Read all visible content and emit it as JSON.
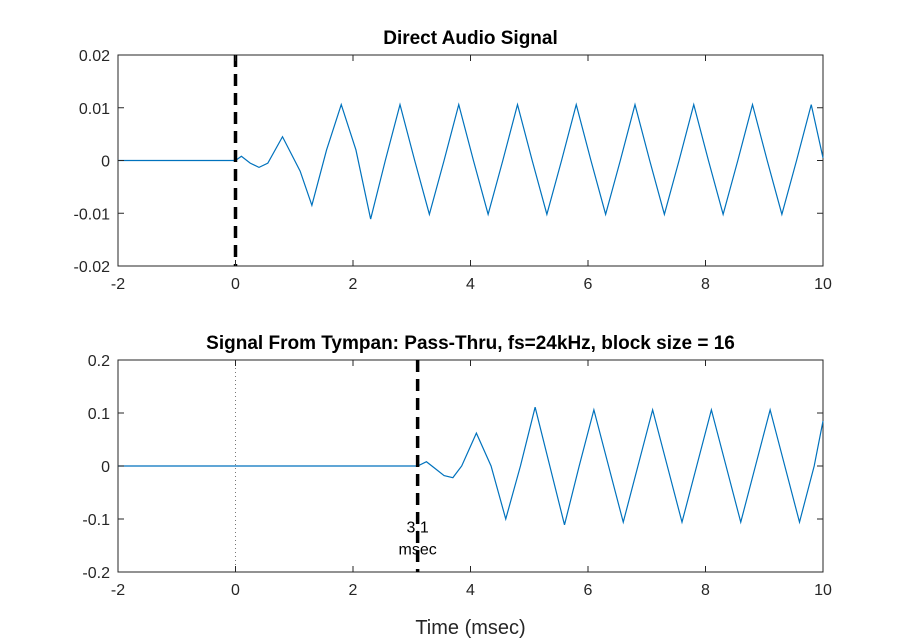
{
  "colors": {
    "signal": "#0072BD",
    "axis": "#262626"
  },
  "chart_data": [
    {
      "type": "line",
      "title": "Direct Audio Signal",
      "xlabel": "",
      "ylabel": "",
      "xlim": [
        -2,
        10
      ],
      "ylim": [
        -0.02,
        0.02
      ],
      "xticks": [
        -2,
        0,
        2,
        4,
        6,
        8,
        10
      ],
      "xtick_labels": [
        "-2",
        "0",
        "2",
        "4",
        "6",
        "8",
        "10"
      ],
      "yticks": [
        0.02,
        0.01,
        0,
        -0.01,
        -0.02
      ],
      "ytick_labels": [
        "0.02",
        "0.01",
        "0",
        "-0.01",
        "-0.02"
      ],
      "grid": false,
      "series": [
        {
          "x": [
            -2,
            -1,
            0,
            0.1,
            0.25,
            0.4,
            0.55,
            0.8,
            1.1,
            1.3,
            1.55,
            1.8,
            2.05,
            2.3,
            2.55,
            2.8,
            3.05,
            3.3,
            3.55,
            3.8,
            4.05,
            4.3,
            4.55,
            4.8,
            5.05,
            5.3,
            5.55,
            5.8,
            6.05,
            6.3,
            6.55,
            6.8,
            7.05,
            7.3,
            7.55,
            7.8,
            8.05,
            8.3,
            8.55,
            8.8,
            9.05,
            9.3,
            9.55,
            9.8,
            10.0
          ],
          "y": [
            0,
            0,
            0,
            0.0008,
            -0.0005,
            -0.0013,
            -0.0005,
            0.0045,
            -0.002,
            -0.0085,
            0.002,
            0.0106,
            0.002,
            -0.0111,
            0,
            0.0106,
            0,
            -0.0102,
            0,
            0.0106,
            0,
            -0.0102,
            0,
            0.0106,
            0,
            -0.0102,
            0,
            0.0106,
            0,
            -0.0102,
            0,
            0.0106,
            0,
            -0.0102,
            0,
            0.0106,
            0,
            -0.0102,
            0,
            0.0106,
            0,
            -0.0102,
            0,
            0.0106,
            0.0005
          ]
        }
      ],
      "markers": [
        {
          "x": 0,
          "style": "dashed"
        }
      ],
      "annotations": []
    },
    {
      "type": "line",
      "title": "Signal From Tympan: Pass-Thru, fs=24kHz, block size = 16",
      "xlabel": "Time (msec)",
      "ylabel": "",
      "xlim": [
        -2,
        10
      ],
      "ylim": [
        -0.2,
        0.2
      ],
      "xticks": [
        -2,
        0,
        2,
        4,
        6,
        8,
        10
      ],
      "xtick_labels": [
        "-2",
        "0",
        "2",
        "4",
        "6",
        "8",
        "10"
      ],
      "yticks": [
        0.2,
        0.1,
        0,
        -0.1,
        -0.2
      ],
      "ytick_labels": [
        "0.2",
        "0.1",
        "0",
        "-0.1",
        "-0.2"
      ],
      "grid": false,
      "series": [
        {
          "x": [
            -2,
            0,
            3.1,
            3.25,
            3.4,
            3.55,
            3.7,
            3.85,
            4.1,
            4.35,
            4.6,
            4.85,
            5.1,
            5.35,
            5.6,
            5.85,
            6.1,
            6.35,
            6.6,
            6.85,
            7.1,
            7.35,
            7.6,
            7.85,
            8.1,
            8.35,
            8.6,
            8.85,
            9.1,
            9.35,
            9.6,
            9.85,
            10.0
          ],
          "y": [
            0,
            0,
            0,
            0.008,
            -0.005,
            -0.018,
            -0.022,
            0.0,
            0.062,
            0.0,
            -0.1,
            0.0,
            0.111,
            0.0,
            -0.111,
            0.0,
            0.106,
            0.0,
            -0.106,
            0.0,
            0.106,
            0.0,
            -0.106,
            0.0,
            0.106,
            0.0,
            -0.106,
            0.0,
            0.106,
            0.0,
            -0.106,
            0.0,
            0.085
          ]
        }
      ],
      "markers": [
        {
          "x": 0,
          "style": "dotted"
        },
        {
          "x": 3.1,
          "style": "dashed"
        }
      ],
      "annotations": [
        {
          "x": 3.1,
          "y": -0.11,
          "lines": [
            "3.1",
            "msec"
          ]
        }
      ]
    }
  ]
}
